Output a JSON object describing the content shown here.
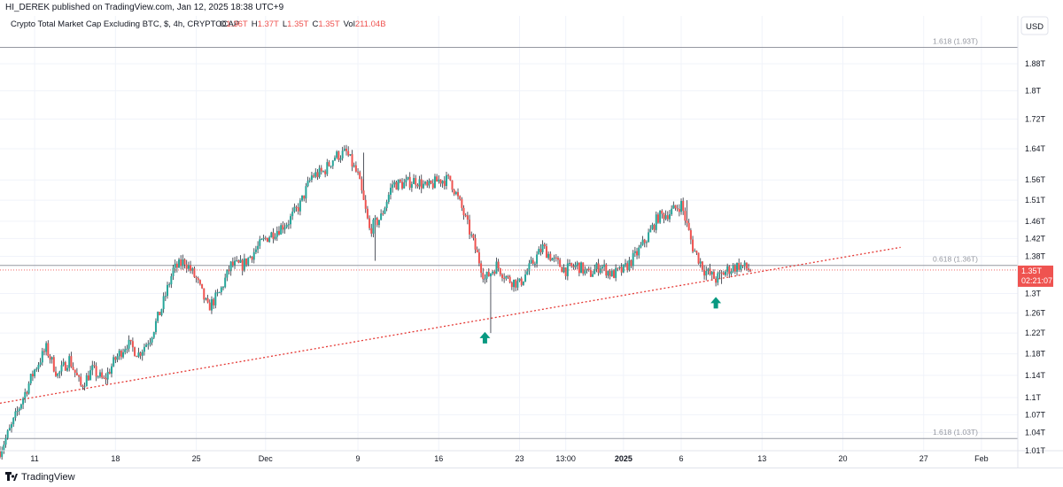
{
  "header": {
    "published_by": "HI_DEREK published on TradingView.com, Jan 12, 2025 18:38 UTC+9"
  },
  "legend": {
    "symbol": "Crypto Total Market Cap Excluding BTC, $, 4h, CRYPTOCAP",
    "ohlc": [
      {
        "label": "O",
        "value": "1.36T"
      },
      {
        "label": "H",
        "value": "1.37T"
      },
      {
        "label": "L",
        "value": "1.35T"
      },
      {
        "label": "C",
        "value": "1.35T"
      }
    ],
    "vol_label": "Vol",
    "vol_value": "211.04B"
  },
  "price_axis": {
    "currency": "USD",
    "current_price": "1.35T",
    "countdown": "02:21:07"
  },
  "footer": {
    "brand": "TradingView"
  },
  "colors": {
    "up": "#26a69a",
    "down": "#ef5350",
    "wick": "#2a2e39",
    "trendline": "#e53935",
    "fib_line": "#9598a1",
    "arrow": "#089981",
    "price_label_bg": "#ef5350"
  },
  "chart_data": {
    "type": "candlestick",
    "interval": "4h",
    "scale": "log",
    "ylim": [
      1.01,
      2.03
    ],
    "y_ticks": [
      {
        "v": 1.88,
        "label": "1.88T"
      },
      {
        "v": 1.8,
        "label": "1.8T"
      },
      {
        "v": 1.72,
        "label": "1.72T"
      },
      {
        "v": 1.64,
        "label": "1.64T"
      },
      {
        "v": 1.56,
        "label": "1.56T"
      },
      {
        "v": 1.51,
        "label": "1.51T"
      },
      {
        "v": 1.46,
        "label": "1.46T"
      },
      {
        "v": 1.42,
        "label": "1.42T"
      },
      {
        "v": 1.38,
        "label": "1.38T"
      },
      {
        "v": 1.3,
        "label": "1.3T"
      },
      {
        "v": 1.26,
        "label": "1.26T"
      },
      {
        "v": 1.22,
        "label": "1.22T"
      },
      {
        "v": 1.18,
        "label": "1.18T"
      },
      {
        "v": 1.14,
        "label": "1.14T"
      },
      {
        "v": 1.1,
        "label": "1.1T"
      },
      {
        "v": 1.07,
        "label": "1.07T"
      },
      {
        "v": 1.04,
        "label": "1.04T"
      },
      {
        "v": 1.01,
        "label": "1.01T"
      }
    ],
    "x_start": "2024-11-08",
    "x_end": "2025-02-04",
    "x_ticks": [
      {
        "date": "2024-11-11",
        "label": "11",
        "bold": false
      },
      {
        "date": "2024-11-18",
        "label": "18",
        "bold": false
      },
      {
        "date": "2024-11-25",
        "label": "25",
        "bold": false
      },
      {
        "date": "2024-12-01",
        "label": "Dec",
        "bold": false
      },
      {
        "date": "2024-12-09",
        "label": "9",
        "bold": false
      },
      {
        "date": "2024-12-16",
        "label": "16",
        "bold": false
      },
      {
        "date": "2024-12-23",
        "label": "23",
        "bold": false
      },
      {
        "date": "2024-12-27",
        "label": "13:00",
        "bold": false
      },
      {
        "date": "2025-01-01",
        "label": "2025",
        "bold": true
      },
      {
        "date": "2025-01-06",
        "label": "6",
        "bold": false
      },
      {
        "date": "2025-01-13",
        "label": "13",
        "bold": false
      },
      {
        "date": "2025-01-20",
        "label": "20",
        "bold": false
      },
      {
        "date": "2025-01-27",
        "label": "27",
        "bold": false
      },
      {
        "date": "2025-02-01",
        "label": "Feb",
        "bold": false
      }
    ],
    "price_path": [
      {
        "date": "2024-11-08",
        "value": 1.01
      },
      {
        "date": "2024-11-09",
        "value": 1.05
      },
      {
        "date": "2024-11-10",
        "value": 1.1
      },
      {
        "date": "2024-11-11",
        "value": 1.15
      },
      {
        "date": "2024-11-12",
        "value": 1.19
      },
      {
        "date": "2024-11-13",
        "value": 1.14
      },
      {
        "date": "2024-11-14",
        "value": 1.17
      },
      {
        "date": "2024-11-15",
        "value": 1.12
      },
      {
        "date": "2024-11-16",
        "value": 1.15
      },
      {
        "date": "2024-11-17",
        "value": 1.13
      },
      {
        "date": "2024-11-18",
        "value": 1.17
      },
      {
        "date": "2024-11-19",
        "value": 1.2
      },
      {
        "date": "2024-11-20",
        "value": 1.18
      },
      {
        "date": "2024-11-21",
        "value": 1.21
      },
      {
        "date": "2024-11-22",
        "value": 1.27
      },
      {
        "date": "2024-11-23",
        "value": 1.35
      },
      {
        "date": "2024-11-24",
        "value": 1.37
      },
      {
        "date": "2024-11-25",
        "value": 1.33
      },
      {
        "date": "2024-11-26",
        "value": 1.27
      },
      {
        "date": "2024-11-27",
        "value": 1.3
      },
      {
        "date": "2024-11-28",
        "value": 1.36
      },
      {
        "date": "2024-11-29",
        "value": 1.36
      },
      {
        "date": "2024-11-30",
        "value": 1.39
      },
      {
        "date": "2024-12-01",
        "value": 1.42
      },
      {
        "date": "2024-12-02",
        "value": 1.44
      },
      {
        "date": "2024-12-03",
        "value": 1.46
      },
      {
        "date": "2024-12-04",
        "value": 1.5
      },
      {
        "date": "2024-12-05",
        "value": 1.57
      },
      {
        "date": "2024-12-06",
        "value": 1.58
      },
      {
        "date": "2024-12-07",
        "value": 1.62
      },
      {
        "date": "2024-12-08",
        "value": 1.63
      },
      {
        "date": "2024-12-09",
        "value": 1.57
      },
      {
        "date": "2024-12-10",
        "value": 1.44
      },
      {
        "date": "2024-12-11",
        "value": 1.47
      },
      {
        "date": "2024-12-12",
        "value": 1.55
      },
      {
        "date": "2024-12-13",
        "value": 1.55
      },
      {
        "date": "2024-12-14",
        "value": 1.56
      },
      {
        "date": "2024-12-15",
        "value": 1.54
      },
      {
        "date": "2024-12-16",
        "value": 1.56
      },
      {
        "date": "2024-12-17",
        "value": 1.56
      },
      {
        "date": "2024-12-18",
        "value": 1.49
      },
      {
        "date": "2024-12-19",
        "value": 1.41
      },
      {
        "date": "2024-12-20",
        "value": 1.33
      },
      {
        "date": "2024-12-21",
        "value": 1.36
      },
      {
        "date": "2024-12-22",
        "value": 1.33
      },
      {
        "date": "2024-12-23",
        "value": 1.32
      },
      {
        "date": "2024-12-24",
        "value": 1.36
      },
      {
        "date": "2024-12-25",
        "value": 1.4
      },
      {
        "date": "2024-12-26",
        "value": 1.37
      },
      {
        "date": "2024-12-27",
        "value": 1.35
      },
      {
        "date": "2024-12-28",
        "value": 1.36
      },
      {
        "date": "2024-12-29",
        "value": 1.34
      },
      {
        "date": "2024-12-30",
        "value": 1.36
      },
      {
        "date": "2024-12-31",
        "value": 1.34
      },
      {
        "date": "2025-01-01",
        "value": 1.35
      },
      {
        "date": "2025-01-02",
        "value": 1.38
      },
      {
        "date": "2025-01-03",
        "value": 1.42
      },
      {
        "date": "2025-01-04",
        "value": 1.47
      },
      {
        "date": "2025-01-05",
        "value": 1.48
      },
      {
        "date": "2025-01-06",
        "value": 1.5
      },
      {
        "date": "2025-01-07",
        "value": 1.4
      },
      {
        "date": "2025-01-08",
        "value": 1.35
      },
      {
        "date": "2025-01-09",
        "value": 1.33
      },
      {
        "date": "2025-01-10",
        "value": 1.35
      },
      {
        "date": "2025-01-11",
        "value": 1.36
      },
      {
        "date": "2025-01-12",
        "value": 1.35
      }
    ],
    "wick_extremes": [
      {
        "date": "2024-12-09",
        "high": 1.63
      },
      {
        "date": "2024-12-10",
        "low": 1.37
      },
      {
        "date": "2024-12-20",
        "low": 1.22
      },
      {
        "date": "2025-01-06",
        "high": 1.51
      },
      {
        "date": "2025-01-09",
        "low": 1.32
      }
    ],
    "trendline": [
      {
        "date": "2024-11-08",
        "value": 1.09
      },
      {
        "date": "2025-01-25",
        "value": 1.4
      }
    ],
    "fib_levels": [
      {
        "value": 1.93,
        "label": "1.618 (1.93T)",
        "from": "2024-11-08"
      },
      {
        "value": 1.36,
        "label": "0.618 (1.36T)",
        "from": "2024-11-08"
      },
      {
        "value": 1.03,
        "label": "1.618 (1.03T)",
        "from": "2024-11-08"
      }
    ],
    "arrows": [
      {
        "date": "2024-12-20",
        "value": 1.21
      },
      {
        "date": "2025-01-09",
        "value": 1.28
      }
    ],
    "current_price": 1.35
  }
}
